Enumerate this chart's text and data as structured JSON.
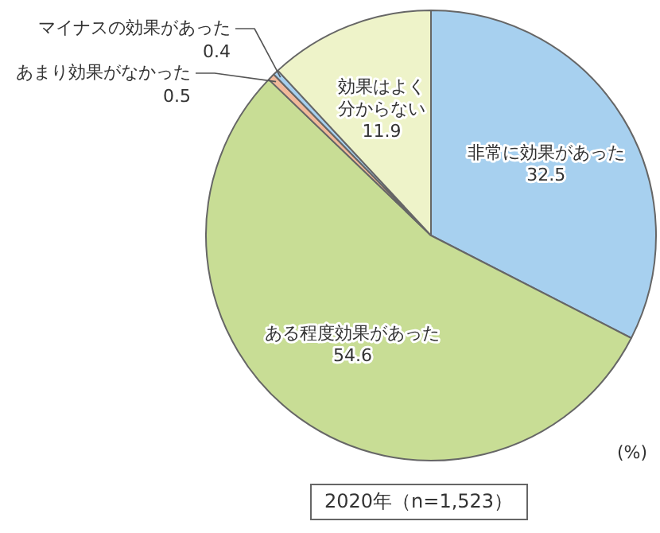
{
  "chart_data": {
    "type": "pie",
    "categories": [
      "非常に効果があった",
      "ある程度効果があった",
      "あまり効果がなかった",
      "マイナスの効果があった",
      "効果はよく分からない"
    ],
    "values": [
      32.5,
      54.6,
      0.5,
      0.4,
      11.9
    ],
    "colors": [
      "#a7d0ef",
      "#c8dd95",
      "#f2b99a",
      "#a7d0ef",
      "#eef3c9"
    ],
    "data_labels": true,
    "legend": false,
    "subtitle": "2020年（n=1,523）",
    "annotations": [
      "(%)"
    ]
  }
}
